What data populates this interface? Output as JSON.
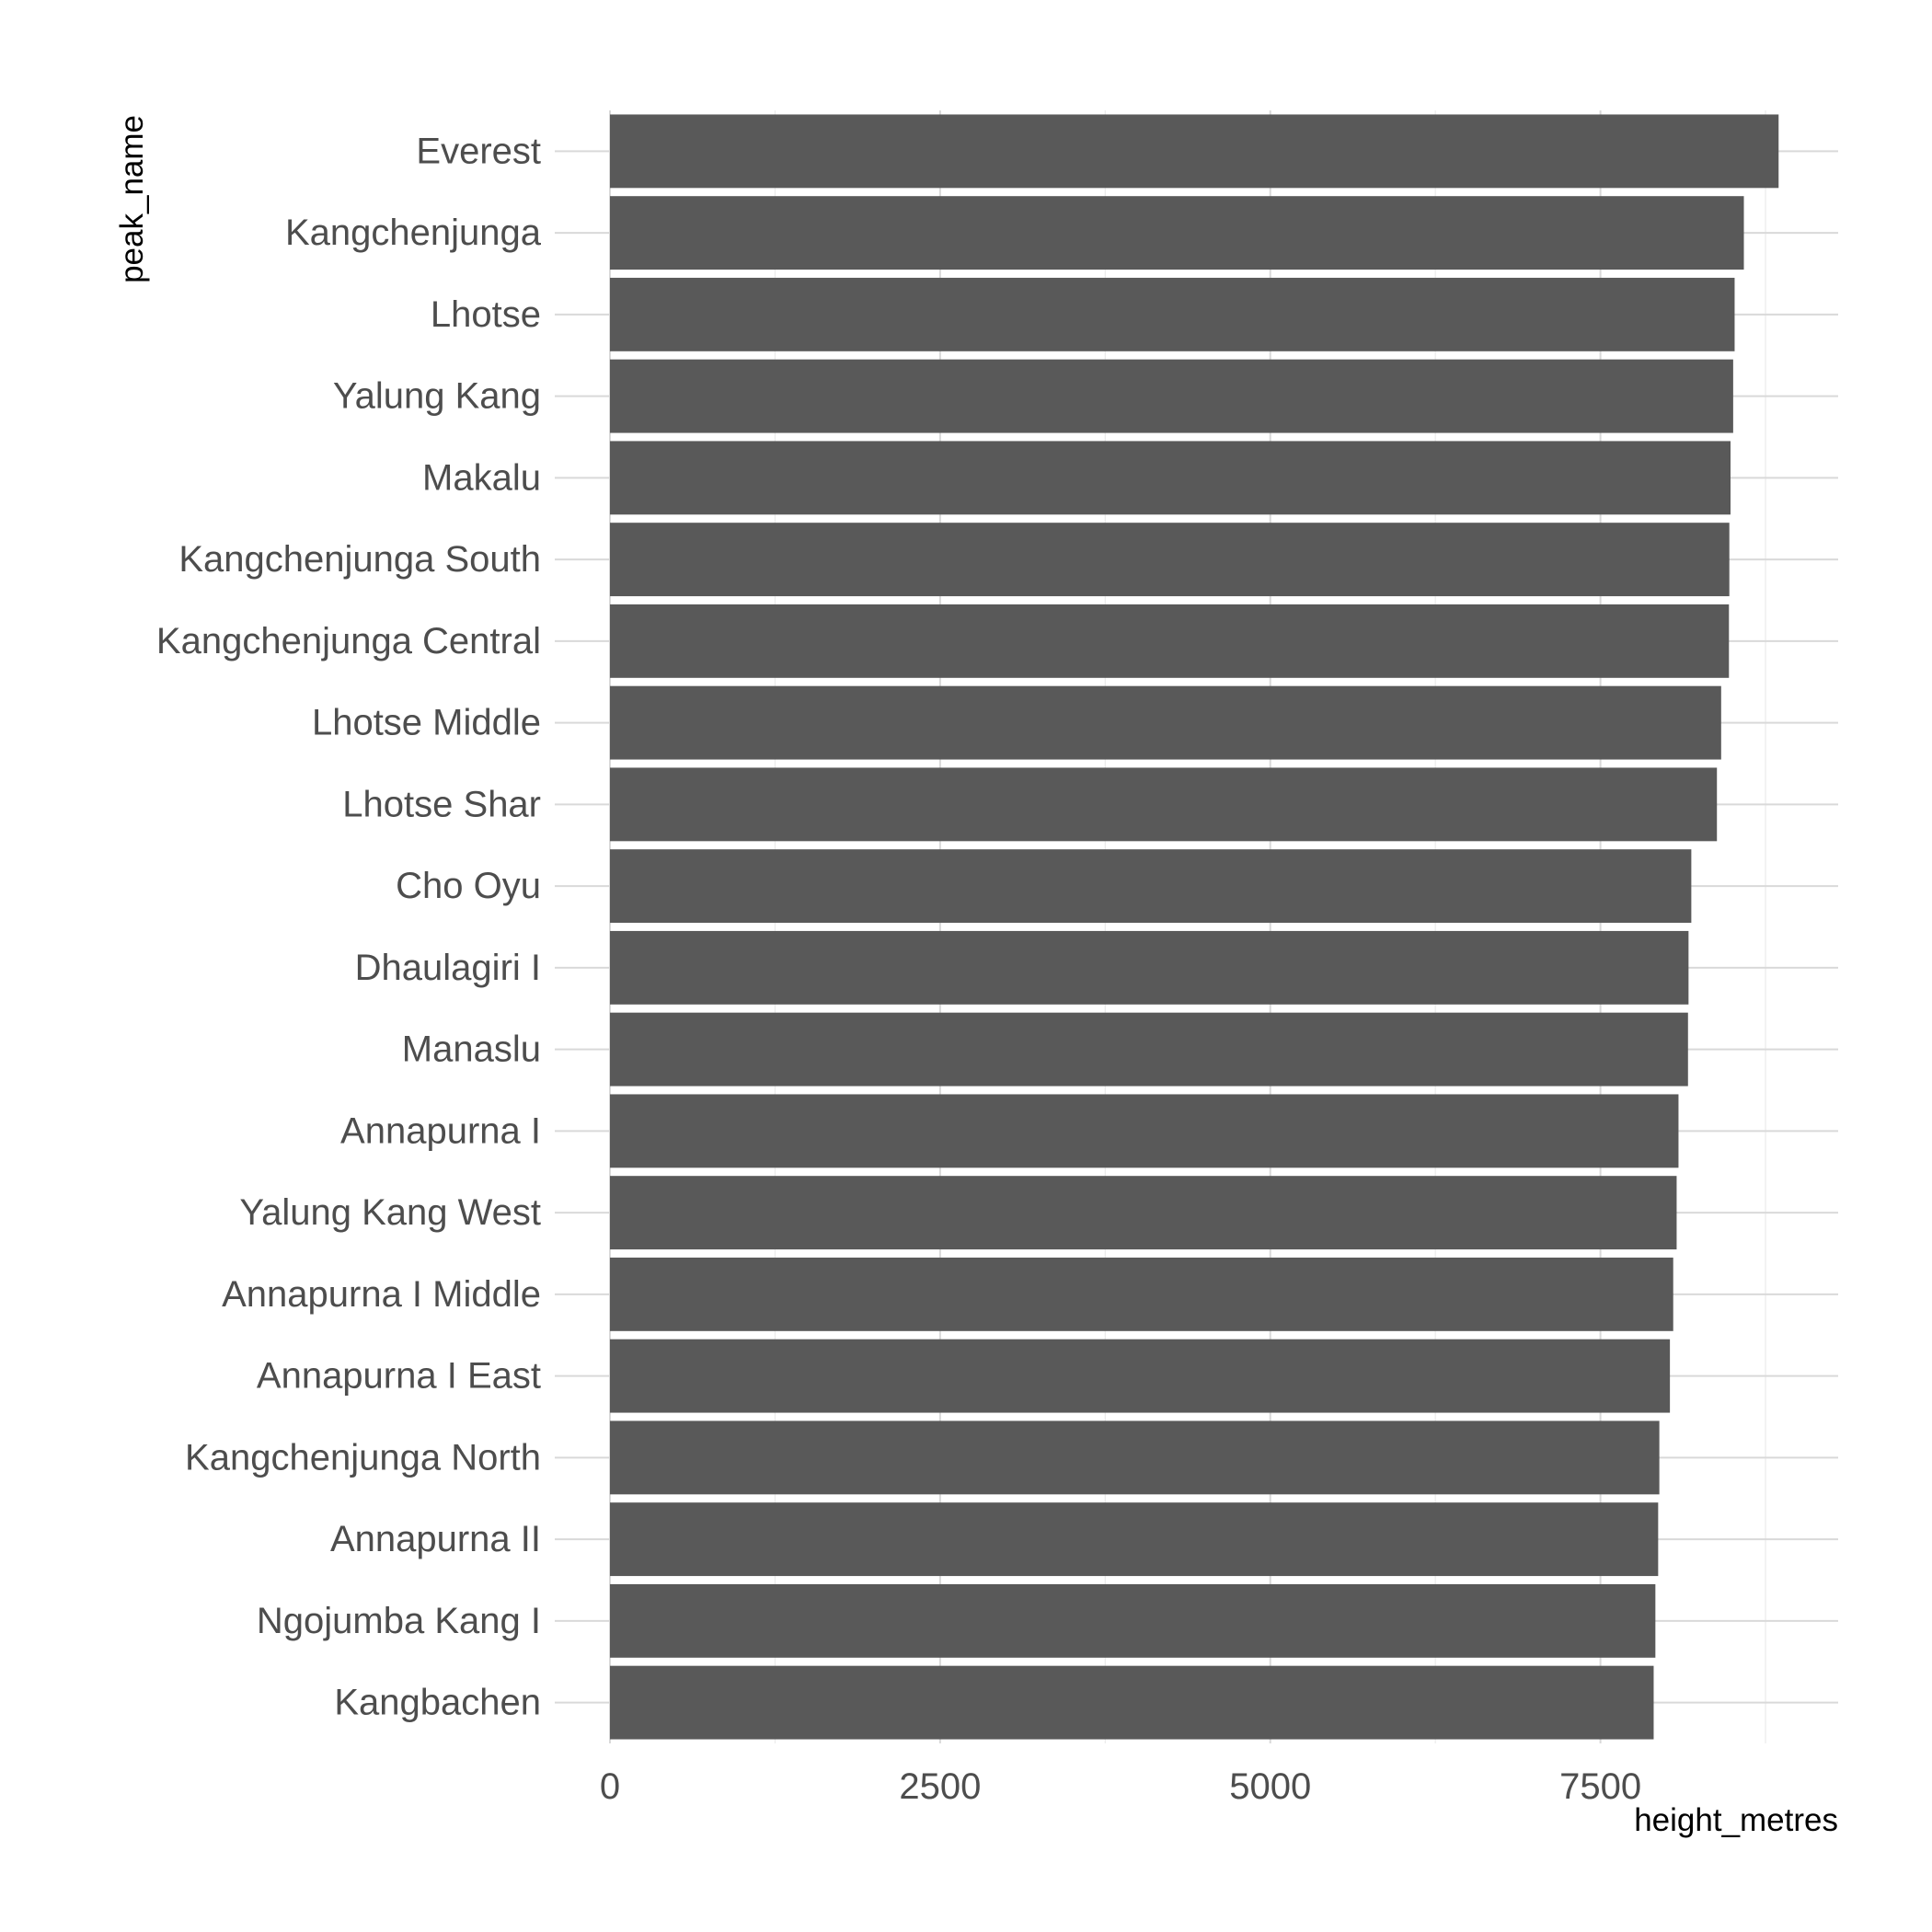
{
  "chart_data": {
    "type": "bar",
    "orientation": "horizontal",
    "xlabel": "height_metres",
    "ylabel": "peak_name",
    "xlim": [
      0,
      9300
    ],
    "x_ticks": [
      0,
      2500,
      5000,
      7500
    ],
    "x_tick_labels": [
      "0",
      "2500",
      "5000",
      "7500"
    ],
    "grid": true,
    "bar_color": "#595959",
    "categories": [
      "Everest",
      "Kangchenjunga",
      "Lhotse",
      "Yalung Kang",
      "Makalu",
      "Kangchenjunga South",
      "Kangchenjunga Central",
      "Lhotse Middle",
      "Lhotse Shar",
      "Cho Oyu",
      "Dhaulagiri I",
      "Manaslu",
      "Annapurna I",
      "Yalung Kang West",
      "Annapurna I Middle",
      "Annapurna I East",
      "Kangchenjunga North",
      "Annapurna II",
      "Ngojumba Kang I",
      "Kangbachen"
    ],
    "values": [
      8849,
      8586,
      8516,
      8505,
      8485,
      8476,
      8473,
      8414,
      8382,
      8188,
      8167,
      8163,
      8091,
      8077,
      8051,
      8026,
      7946,
      7937,
      7916,
      7903
    ]
  }
}
